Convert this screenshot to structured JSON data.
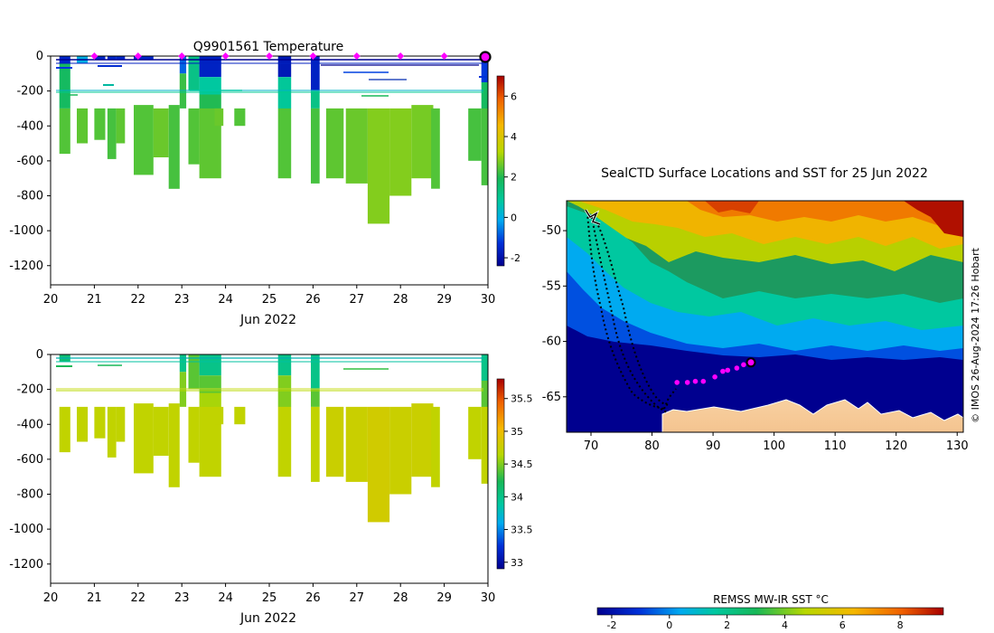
{
  "chart_data": [
    {
      "type": "heatmap",
      "title": "Q9901561  Temperature",
      "xlabel": "Jun 2022",
      "ylabel": "",
      "x_ticks": [
        "20",
        "21",
        "22",
        "23",
        "24",
        "25",
        "26",
        "27",
        "28",
        "29",
        "30"
      ],
      "xlim": [
        20,
        30
      ],
      "y_ticks": [
        "0",
        "-200",
        "-400",
        "-600",
        "-800",
        "-1000",
        "-1200"
      ],
      "ylim": [
        -1310,
        0
      ],
      "colorbar": {
        "ticks": [
          "-2",
          "0",
          "2",
          "4",
          "6"
        ],
        "range": [
          -2.4,
          7.0
        ]
      },
      "profiles": [
        {
          "t": 20.2,
          "w": 0.25,
          "bottom": -560,
          "segments": [
            [
              0,
              -40,
              -1.5
            ],
            [
              -40,
              -300,
              1.8
            ],
            [
              -300,
              -560,
              2.4
            ]
          ]
        },
        {
          "t": 20.6,
          "w": 0.25,
          "bottom": -500,
          "segments": [
            [
              0,
              -40,
              0.0
            ],
            [
              -300,
              -500,
              2.5
            ]
          ]
        },
        {
          "t": 21.0,
          "w": 0.25,
          "bottom": -480,
          "segments": [
            [
              0,
              -20,
              -1.5
            ],
            [
              -300,
              -480,
              2.4
            ]
          ]
        },
        {
          "t": 21.3,
          "w": 0.2,
          "bottom": -590,
          "segments": [
            [
              0,
              -20,
              -1.5
            ],
            [
              -300,
              -590,
              2.3
            ]
          ]
        },
        {
          "t": 21.5,
          "w": 0.2,
          "bottom": -500,
          "segments": [
            [
              0,
              -20,
              -1.5
            ],
            [
              -300,
              -500,
              2.5
            ]
          ]
        },
        {
          "t": 21.9,
          "w": 0.45,
          "bottom": -680,
          "segments": [
            [
              0,
              -20,
              -1.5
            ],
            [
              -280,
              -680,
              2.4
            ]
          ]
        },
        {
          "t": 22.35,
          "w": 0.35,
          "bottom": -580,
          "segments": [
            [
              -300,
              -580,
              2.6
            ]
          ]
        },
        {
          "t": 22.7,
          "w": 0.25,
          "bottom": -760,
          "segments": [
            [
              -280,
              -760,
              2.3
            ]
          ]
        },
        {
          "t": 22.95,
          "w": 0.15,
          "bottom": -300,
          "segments": [
            [
              0,
              -100,
              -0.8
            ],
            [
              -100,
              -300,
              2.2
            ]
          ]
        },
        {
          "t": 23.15,
          "w": 0.25,
          "bottom": -620,
          "segments": [
            [
              0,
              -200,
              1.2
            ],
            [
              -300,
              -620,
              2.4
            ]
          ]
        },
        {
          "t": 23.4,
          "w": 0.5,
          "bottom": -700,
          "segments": [
            [
              0,
              -120,
              -1.6
            ],
            [
              -120,
              -220,
              0.8
            ],
            [
              -220,
              -300,
              2.0
            ],
            [
              -300,
              -700,
              2.5
            ]
          ]
        },
        {
          "t": 23.75,
          "w": 0.2,
          "bottom": -400,
          "segments": [
            [
              -300,
              -400,
              2.6
            ]
          ]
        },
        {
          "t": 24.2,
          "w": 0.25,
          "bottom": -400,
          "segments": [
            [
              -300,
              -400,
              2.4
            ]
          ]
        },
        {
          "t": 25.2,
          "w": 0.3,
          "bottom": -700,
          "segments": [
            [
              0,
              -120,
              -1.8
            ],
            [
              -120,
              -300,
              0.9
            ],
            [
              -300,
              -700,
              2.4
            ]
          ]
        },
        {
          "t": 25.95,
          "w": 0.2,
          "bottom": -730,
          "segments": [
            [
              0,
              -200,
              -1.6
            ],
            [
              -200,
              -300,
              1.2
            ],
            [
              -300,
              -730,
              2.3
            ]
          ]
        },
        {
          "t": 26.3,
          "w": 0.4,
          "bottom": -700,
          "segments": [
            [
              -300,
              -700,
              2.5
            ]
          ]
        },
        {
          "t": 26.75,
          "w": 0.5,
          "bottom": -730,
          "segments": [
            [
              -300,
              -730,
              2.6
            ]
          ]
        },
        {
          "t": 27.25,
          "w": 0.5,
          "bottom": -960,
          "segments": [
            [
              -300,
              -960,
              2.8
            ]
          ]
        },
        {
          "t": 27.75,
          "w": 0.5,
          "bottom": -800,
          "segments": [
            [
              -300,
              -800,
              2.8
            ]
          ]
        },
        {
          "t": 28.25,
          "w": 0.5,
          "bottom": -700,
          "segments": [
            [
              -280,
              -700,
              2.7
            ]
          ]
        },
        {
          "t": 28.7,
          "w": 0.2,
          "bottom": -760,
          "segments": [
            [
              -300,
              -760,
              2.4
            ]
          ]
        },
        {
          "t": 29.55,
          "w": 0.3,
          "bottom": -600,
          "segments": [
            [
              -300,
              -600,
              2.3
            ]
          ]
        },
        {
          "t": 29.85,
          "w": 0.15,
          "bottom": -740,
          "segments": [
            [
              0,
              -150,
              -1.2
            ],
            [
              -150,
              -300,
              1.8
            ],
            [
              -300,
              -740,
              2.3
            ]
          ]
        }
      ],
      "markers": [
        21,
        22,
        23,
        24,
        25,
        26,
        27,
        28,
        29
      ],
      "current_marker": 30
    },
    {
      "type": "heatmap",
      "title": "",
      "xlabel": "Jun 2022",
      "ylabel": "",
      "x_ticks": [
        "20",
        "21",
        "22",
        "23",
        "24",
        "25",
        "26",
        "27",
        "28",
        "29",
        "30"
      ],
      "xlim": [
        20,
        30
      ],
      "y_ticks": [
        "0",
        "-200",
        "-400",
        "-600",
        "-800",
        "-1000",
        "-1200"
      ],
      "ylim": [
        -1310,
        0
      ],
      "colorbar": {
        "ticks": [
          "33",
          "33.5",
          "34",
          "34.5",
          "35",
          "35.5"
        ],
        "range": [
          32.9,
          35.8
        ]
      },
      "profiles": [
        {
          "t": 20.2,
          "w": 0.25,
          "bottom": -560,
          "segments": [
            [
              0,
              -40,
              34.1
            ],
            [
              -300,
              -560,
              34.7
            ]
          ]
        },
        {
          "t": 20.6,
          "w": 0.25,
          "bottom": -500,
          "segments": [
            [
              -300,
              -500,
              34.7
            ]
          ]
        },
        {
          "t": 21.0,
          "w": 0.25,
          "bottom": -480,
          "segments": [
            [
              -300,
              -480,
              34.7
            ]
          ]
        },
        {
          "t": 21.3,
          "w": 0.2,
          "bottom": -590,
          "segments": [
            [
              -300,
              -590,
              34.7
            ]
          ]
        },
        {
          "t": 21.5,
          "w": 0.2,
          "bottom": -500,
          "segments": [
            [
              -300,
              -500,
              34.7
            ]
          ]
        },
        {
          "t": 21.9,
          "w": 0.45,
          "bottom": -680,
          "segments": [
            [
              -280,
              -680,
              34.7
            ]
          ]
        },
        {
          "t": 22.35,
          "w": 0.35,
          "bottom": -580,
          "segments": [
            [
              -300,
              -580,
              34.7
            ]
          ]
        },
        {
          "t": 22.7,
          "w": 0.25,
          "bottom": -760,
          "segments": [
            [
              -280,
              -760,
              34.7
            ]
          ]
        },
        {
          "t": 22.95,
          "w": 0.15,
          "bottom": -300,
          "segments": [
            [
              0,
              -100,
              34.0
            ],
            [
              -100,
              -300,
              34.5
            ]
          ]
        },
        {
          "t": 23.15,
          "w": 0.25,
          "bottom": -620,
          "segments": [
            [
              0,
              -200,
              34.4
            ],
            [
              -300,
              -620,
              34.7
            ]
          ]
        },
        {
          "t": 23.4,
          "w": 0.5,
          "bottom": -700,
          "segments": [
            [
              0,
              -120,
              34.0
            ],
            [
              -120,
              -220,
              34.4
            ],
            [
              -220,
              -300,
              34.6
            ],
            [
              -300,
              -700,
              34.7
            ]
          ]
        },
        {
          "t": 23.75,
          "w": 0.2,
          "bottom": -400,
          "segments": [
            [
              -300,
              -400,
              34.7
            ]
          ]
        },
        {
          "t": 24.2,
          "w": 0.25,
          "bottom": -400,
          "segments": [
            [
              -300,
              -400,
              34.7
            ]
          ]
        },
        {
          "t": 25.2,
          "w": 0.3,
          "bottom": -700,
          "segments": [
            [
              0,
              -120,
              34.0
            ],
            [
              -120,
              -300,
              34.5
            ],
            [
              -300,
              -700,
              34.7
            ]
          ]
        },
        {
          "t": 25.95,
          "w": 0.2,
          "bottom": -730,
          "segments": [
            [
              0,
              -200,
              34.0
            ],
            [
              -200,
              -300,
              34.4
            ],
            [
              -300,
              -730,
              34.7
            ]
          ]
        },
        {
          "t": 26.3,
          "w": 0.4,
          "bottom": -700,
          "segments": [
            [
              -300,
              -700,
              34.75
            ]
          ]
        },
        {
          "t": 26.75,
          "w": 0.5,
          "bottom": -730,
          "segments": [
            [
              -300,
              -730,
              34.75
            ]
          ]
        },
        {
          "t": 27.25,
          "w": 0.5,
          "bottom": -960,
          "segments": [
            [
              -300,
              -960,
              34.8
            ]
          ]
        },
        {
          "t": 27.75,
          "w": 0.5,
          "bottom": -800,
          "segments": [
            [
              -300,
              -800,
              34.75
            ]
          ]
        },
        {
          "t": 28.25,
          "w": 0.5,
          "bottom": -700,
          "segments": [
            [
              -280,
              -700,
              34.75
            ]
          ]
        },
        {
          "t": 28.7,
          "w": 0.2,
          "bottom": -760,
          "segments": [
            [
              -300,
              -760,
              34.7
            ]
          ]
        },
        {
          "t": 29.55,
          "w": 0.3,
          "bottom": -600,
          "segments": [
            [
              -300,
              -600,
              34.7
            ]
          ]
        },
        {
          "t": 29.85,
          "w": 0.15,
          "bottom": -740,
          "segments": [
            [
              0,
              -150,
              34.0
            ],
            [
              -150,
              -300,
              34.4
            ],
            [
              -300,
              -740,
              34.7
            ]
          ]
        }
      ]
    },
    {
      "type": "heatmap",
      "title": "SealCTD Surface Locations and SST for 25 Jun 2022",
      "x_ticks": [
        "70",
        "80",
        "90",
        "100",
        "110",
        "120",
        "130"
      ],
      "xlim": [
        66,
        131
      ],
      "y_ticks": [
        "-50",
        "-55",
        "-60",
        "-65"
      ],
      "ylim": [
        -68.2,
        -47.3
      ],
      "colorbar_label": "REMSS MW-IR SST °C",
      "colorbar": {
        "ticks": [
          "-2",
          "0",
          "2",
          "4",
          "6",
          "8"
        ],
        "range": [
          -2.5,
          9.5
        ]
      },
      "credit": "© IMOS 26-Aug-2024 17:26 Hobart",
      "track_recent": [
        [
          84.1,
          -63.7
        ],
        [
          85.8,
          -63.7
        ],
        [
          87.1,
          -63.6
        ],
        [
          88.4,
          -63.6
        ],
        [
          90.3,
          -63.2
        ],
        [
          91.6,
          -62.7
        ],
        [
          92.4,
          -62.6
        ],
        [
          93.9,
          -62.4
        ],
        [
          95.0,
          -62.1
        ]
      ],
      "current_position": [
        96.2,
        -61.9
      ]
    }
  ]
}
